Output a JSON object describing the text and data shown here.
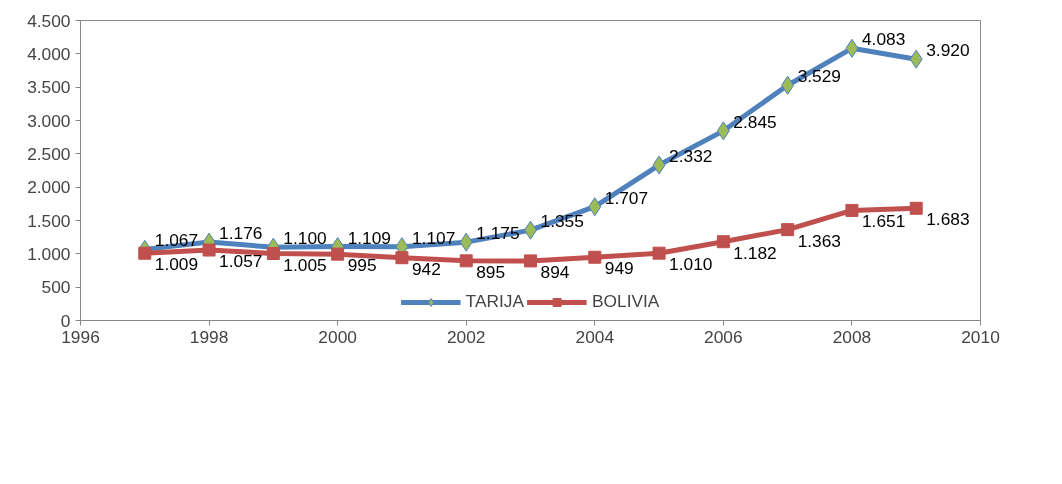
{
  "chart_data": {
    "type": "line",
    "x": [
      1997,
      1998,
      1999,
      2000,
      2001,
      2002,
      2003,
      2004,
      2005,
      2006,
      2007,
      2008,
      2009
    ],
    "series": [
      {
        "name": "TARIJA",
        "color": "#4f81bd",
        "marker": "diamond",
        "values": [
          1067,
          1176,
          1100,
          1109,
          1107,
          1175,
          1355,
          1707,
          2332,
          2845,
          3529,
          4083,
          3920
        ],
        "value_labels": [
          "1.067",
          "1.176",
          "1.100",
          "1.109",
          "1.107",
          "1.175",
          "1.355",
          "1.707",
          "2.332",
          "2.845",
          "3.529",
          "4.083",
          "3.920"
        ]
      },
      {
        "name": "BOLIVIA",
        "color": "#c0504d",
        "marker": "square",
        "values": [
          1009,
          1057,
          1005,
          995,
          942,
          895,
          894,
          949,
          1010,
          1182,
          1363,
          1651,
          1683
        ],
        "value_labels": [
          "1.009",
          "1.057",
          "1.005",
          "995",
          "942",
          "895",
          "894",
          "949",
          "1.010",
          "1.182",
          "1.363",
          "1.651",
          "1.683"
        ]
      }
    ],
    "xlim": [
      1996,
      2010
    ],
    "xticks": [
      1996,
      1998,
      2000,
      2002,
      2004,
      2006,
      2008,
      2010
    ],
    "ylim": [
      0,
      4500
    ],
    "yticks": [
      0,
      500,
      {
        "value": 1000,
        "label": "1.000"
      },
      {
        "value": 1500,
        "label": "1.500"
      },
      {
        "value": 2000,
        "label": "2.000"
      },
      {
        "value": 2500,
        "label": "2.500"
      },
      {
        "value": 3000,
        "label": "3.000"
      },
      {
        "value": 3500,
        "label": "3.500"
      },
      {
        "value": 4000,
        "label": "4.000"
      },
      {
        "value": 4500,
        "label": "4.500"
      }
    ],
    "grid": false,
    "legend": "bottom",
    "line_style": "solid"
  }
}
